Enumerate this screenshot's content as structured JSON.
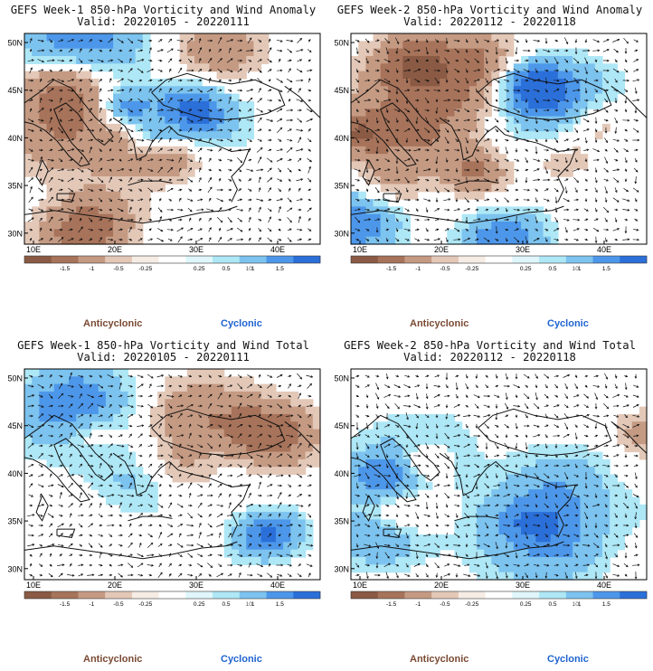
{
  "panels": [
    {
      "title": "GEFS Week-1 850-hPa Vorticity and Wind Anomaly",
      "valid": "Valid: 20220105 - 20220111",
      "seed": 11
    },
    {
      "title": "GEFS Week-2 850-hPa Vorticity and Wind Anomaly",
      "valid": "Valid: 20220112 - 20220118",
      "seed": 23
    },
    {
      "title": "GEFS Week-1 850-hPa Vorticity and Wind Total",
      "valid": "Valid: 20220105 - 20220111",
      "seed": 37
    },
    {
      "title": "GEFS Week-2 850-hPa Vorticity and Wind Total",
      "valid": "Valid: 20220112 - 20220118",
      "seed": 53
    }
  ],
  "axes": {
    "lon_labels": [
      "10E",
      "20E",
      "30E",
      "40E"
    ],
    "lat_labels": [
      "50N",
      "45N",
      "40N",
      "35N",
      "30N"
    ]
  },
  "colorbar": {
    "ticks": [
      "-1.5",
      "-1",
      "-0.5",
      "-0.25",
      "0.25",
      "0.5",
      "1",
      "1.5"
    ],
    "scale_label": "10",
    "colors": [
      "#8a5a44",
      "#a7735a",
      "#c59a83",
      "#e3c8b8",
      "#f6ece5",
      "#ffffff",
      "#dff6fb",
      "#aee7f6",
      "#7cc3ef",
      "#4d97ea",
      "#2b6fd9"
    ]
  },
  "captions": {
    "anticyclonic": "Anticyclonic",
    "cyclonic": "Cyclonic"
  },
  "colors": {
    "anticyclonic": "#7a4a33",
    "cyclonic": "#1f63d1",
    "land_border": "#111111"
  }
}
